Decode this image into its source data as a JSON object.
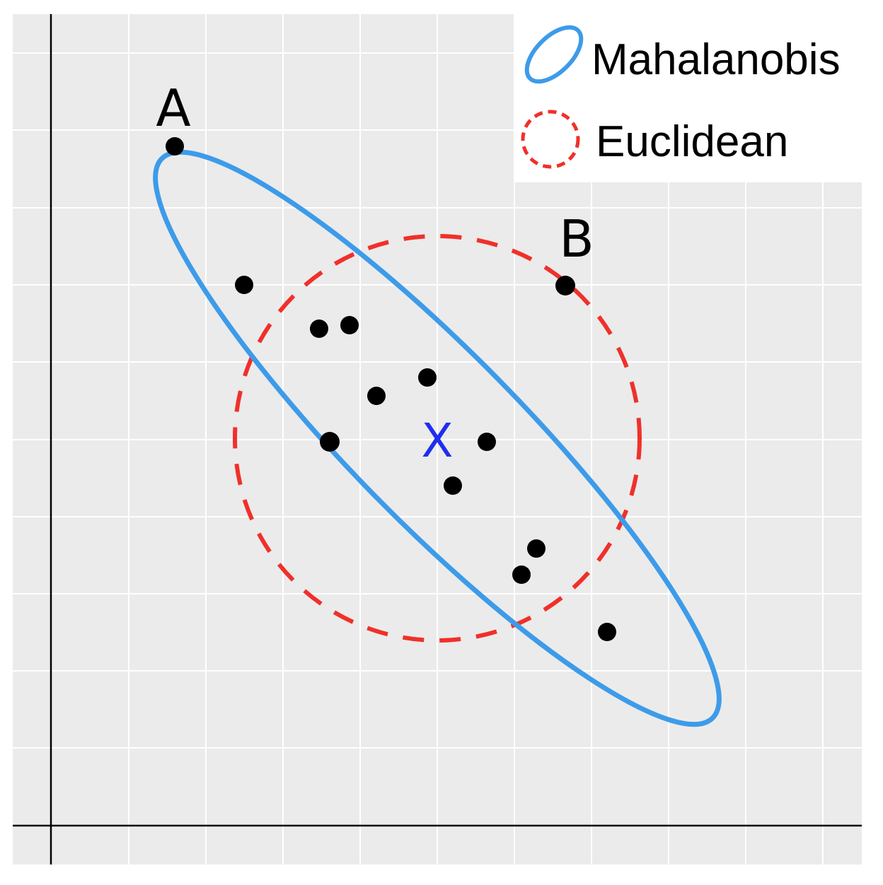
{
  "colors": {
    "panel": "#ebebeb",
    "grid": "#ffffff",
    "axis": "#000000",
    "mahalanobis": "#3d9be9",
    "euclidean": "#f0302a",
    "mean_marker": "#1f2ef0",
    "point": "#000000"
  },
  "points": [
    {
      "label": "A"
    },
    {
      "label": ""
    },
    {
      "label": ""
    },
    {
      "label": ""
    },
    {
      "label": "B"
    },
    {
      "label": ""
    },
    {
      "label": ""
    },
    {
      "label": ""
    },
    {
      "label": ""
    },
    {
      "label": ""
    },
    {
      "label": ""
    },
    {
      "label": ""
    },
    {
      "label": ""
    }
  ],
  "mean_marker": {
    "label": "X"
  },
  "legend": {
    "mahalanobis": "Mahalanobis",
    "euclidean": "Euclidean"
  }
}
